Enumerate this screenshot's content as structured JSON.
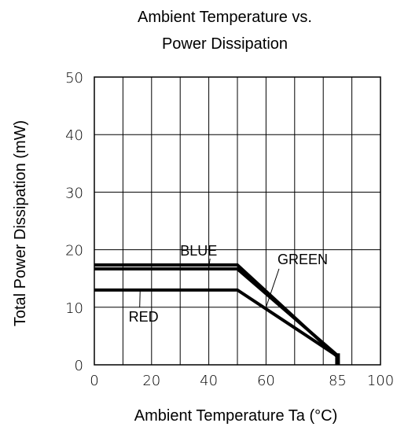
{
  "chart_data": {
    "type": "line",
    "title_lines": [
      "Ambient Temperature vs.",
      "Power Dissipation"
    ],
    "xlabel": "Ambient Temperature Ta (°C)",
    "ylabel": "Total Power Dissipation  (mW)",
    "xlim": [
      0,
      100
    ],
    "ylim": [
      0,
      50
    ],
    "x_tick_labels": [
      {
        "value": 0,
        "label": "0"
      },
      {
        "value": 20,
        "label": "20"
      },
      {
        "value": 40,
        "label": "40"
      },
      {
        "value": 60,
        "label": "60"
      },
      {
        "value": 85,
        "label": "85"
      },
      {
        "value": 100,
        "label": "100"
      }
    ],
    "y_tick_labels": [
      {
        "value": 0,
        "label": "0"
      },
      {
        "value": 10,
        "label": "10"
      },
      {
        "value": 20,
        "label": "20"
      },
      {
        "value": 30,
        "label": "30"
      },
      {
        "value": 40,
        "label": "40"
      },
      {
        "value": 50,
        "label": "50"
      }
    ],
    "x_grid": [
      0,
      10,
      20,
      30,
      40,
      50,
      60,
      70,
      80,
      90,
      100
    ],
    "y_grid": [
      0,
      10,
      20,
      30,
      40,
      50
    ],
    "grid": true,
    "series": [
      {
        "name": "BLUE",
        "x": [
          0,
          50,
          85
        ],
        "y": [
          17,
          17,
          1.5
        ]
      },
      {
        "name": "GREEN",
        "x": [
          0,
          50,
          85
        ],
        "y": [
          17,
          17,
          1.5
        ]
      },
      {
        "name": "RED",
        "x": [
          0,
          50,
          85
        ],
        "y": [
          13,
          13,
          1.5
        ]
      }
    ],
    "end_marker": {
      "x": 85,
      "y": [
        0,
        2
      ]
    },
    "series_labels": [
      {
        "text": "BLUE",
        "x": 30,
        "y": 19,
        "leader_to": [
          40,
          16.9
        ]
      },
      {
        "text": "GREEN",
        "x": 64,
        "y": 17.5,
        "leader_to": [
          60,
          10
        ]
      },
      {
        "text": "RED",
        "x": 12,
        "y": 7.5,
        "leader_to": [
          16,
          12.9
        ]
      }
    ],
    "line_color": "#000000"
  }
}
